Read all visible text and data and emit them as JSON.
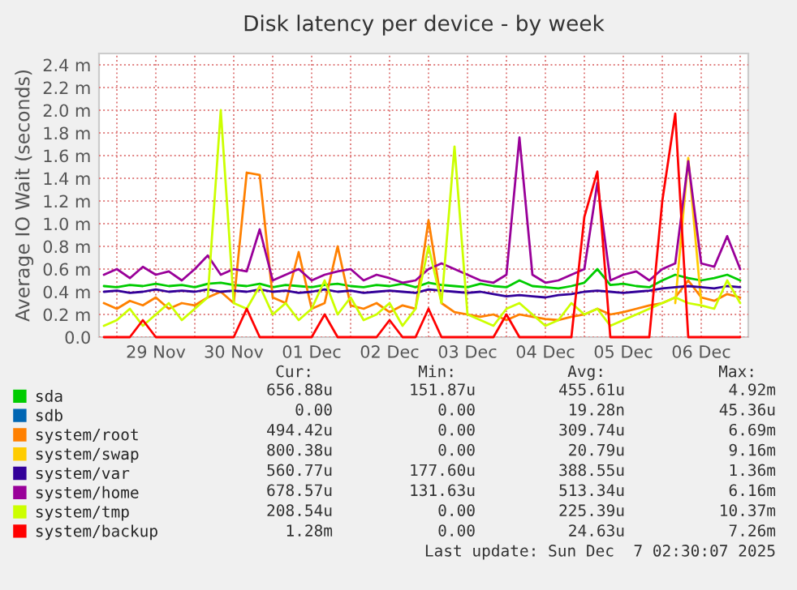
{
  "chart_data": {
    "type": "line",
    "title": "Disk latency per device - by week",
    "ylabel": "Average IO Wait (seconds)",
    "x": [
      "2025-11-28T20:00",
      "2025-11-29T00:00",
      "2025-11-29T04:00",
      "2025-11-29T08:00",
      "2025-11-29T12:00",
      "2025-11-29T16:00",
      "2025-11-29T20:00",
      "2025-11-30T00:00",
      "2025-11-30T04:00",
      "2025-11-30T08:00",
      "2025-11-30T12:00",
      "2025-11-30T16:00",
      "2025-11-30T20:00",
      "2025-12-01T00:00",
      "2025-12-01T04:00",
      "2025-12-01T08:00",
      "2025-12-01T12:00",
      "2025-12-01T16:00",
      "2025-12-01T20:00",
      "2025-12-02T00:00",
      "2025-12-02T04:00",
      "2025-12-02T08:00",
      "2025-12-02T12:00",
      "2025-12-02T16:00",
      "2025-12-02T20:00",
      "2025-12-03T00:00",
      "2025-12-03T04:00",
      "2025-12-03T08:00",
      "2025-12-03T12:00",
      "2025-12-03T16:00",
      "2025-12-03T20:00",
      "2025-12-04T00:00",
      "2025-12-04T04:00",
      "2025-12-04T08:00",
      "2025-12-04T12:00",
      "2025-12-04T16:00",
      "2025-12-04T20:00",
      "2025-12-05T00:00",
      "2025-12-05T04:00",
      "2025-12-05T08:00",
      "2025-12-05T12:00",
      "2025-12-05T16:00",
      "2025-12-05T20:00",
      "2025-12-06T00:00",
      "2025-12-06T04:00",
      "2025-12-06T08:00",
      "2025-12-06T12:00",
      "2025-12-06T16:00",
      "2025-12-06T20:00",
      "2025-12-07T00:00"
    ],
    "series": [
      {
        "name": "sda",
        "color": "#00cc00",
        "values": [
          0.45,
          0.44,
          0.46,
          0.45,
          0.47,
          0.45,
          0.46,
          0.44,
          0.47,
          0.48,
          0.46,
          0.45,
          0.47,
          0.44,
          0.46,
          0.45,
          0.44,
          0.46,
          0.47,
          0.45,
          0.44,
          0.46,
          0.45,
          0.47,
          0.44,
          0.48,
          0.46,
          0.45,
          0.44,
          0.47,
          0.45,
          0.44,
          0.5,
          0.45,
          0.44,
          0.43,
          0.45,
          0.48,
          0.6,
          0.46,
          0.47,
          0.45,
          0.44,
          0.5,
          0.55,
          0.52,
          0.5,
          0.52,
          0.55,
          0.5
        ]
      },
      {
        "name": "sdb",
        "color": "#0066b3",
        "values": [
          null,
          null,
          null,
          null,
          null,
          null,
          null,
          null,
          null,
          null,
          null,
          null,
          null,
          null,
          null,
          null,
          null,
          null,
          null,
          null,
          null,
          null,
          null,
          null,
          null,
          null,
          null,
          null,
          null,
          null,
          null,
          null,
          null,
          null,
          null,
          null,
          null,
          null,
          null,
          null,
          null,
          null,
          null,
          null,
          null,
          null,
          null,
          null,
          null,
          null
        ]
      },
      {
        "name": "system/root",
        "color": "#ff8000",
        "values": [
          0.3,
          0.25,
          0.32,
          0.28,
          0.35,
          0.25,
          0.3,
          0.28,
          0.35,
          0.4,
          0.3,
          1.45,
          1.43,
          0.35,
          0.3,
          0.75,
          0.25,
          0.3,
          0.8,
          0.28,
          0.25,
          0.3,
          0.22,
          0.28,
          0.25,
          1.03,
          0.3,
          0.22,
          0.2,
          0.18,
          0.2,
          0.15,
          0.2,
          0.18,
          0.16,
          0.15,
          0.18,
          0.2,
          0.25,
          0.2,
          0.22,
          0.25,
          0.28,
          0.3,
          0.35,
          0.5,
          0.35,
          0.32,
          0.38,
          0.35
        ]
      },
      {
        "name": "system/swap",
        "color": "#ffcc00",
        "values": [
          null,
          null,
          null,
          null,
          null,
          null,
          null,
          null,
          null,
          null,
          null,
          null,
          null,
          null,
          null,
          null,
          null,
          null,
          null,
          null,
          null,
          null,
          null,
          null,
          null,
          null,
          null,
          null,
          null,
          null,
          null,
          null,
          null,
          null,
          null,
          null,
          null,
          null,
          null,
          null,
          null,
          null,
          null,
          null,
          0.3,
          1.58,
          0.3,
          null,
          null,
          null
        ]
      },
      {
        "name": "system/var",
        "color": "#330099",
        "values": [
          0.4,
          0.41,
          0.39,
          0.4,
          0.42,
          0.4,
          0.41,
          0.4,
          0.42,
          0.4,
          0.41,
          0.4,
          0.42,
          0.4,
          0.41,
          0.39,
          0.4,
          0.42,
          0.4,
          0.41,
          0.39,
          0.4,
          0.41,
          0.4,
          0.39,
          0.42,
          0.41,
          0.4,
          0.39,
          0.4,
          0.38,
          0.36,
          0.37,
          0.36,
          0.35,
          0.37,
          0.38,
          0.4,
          0.41,
          0.4,
          0.39,
          0.4,
          0.41,
          0.43,
          0.44,
          0.45,
          0.44,
          0.43,
          0.45,
          0.44
        ]
      },
      {
        "name": "system/home",
        "color": "#990099",
        "values": [
          0.55,
          0.6,
          0.52,
          0.62,
          0.55,
          0.58,
          0.5,
          0.6,
          0.72,
          0.55,
          0.6,
          0.58,
          0.95,
          0.5,
          0.55,
          0.6,
          0.5,
          0.55,
          0.58,
          0.6,
          0.5,
          0.55,
          0.52,
          0.48,
          0.5,
          0.6,
          0.65,
          0.6,
          0.55,
          0.5,
          0.48,
          0.55,
          1.76,
          0.55,
          0.48,
          0.5,
          0.55,
          0.6,
          1.36,
          0.5,
          0.55,
          0.58,
          0.5,
          0.6,
          0.65,
          1.55,
          0.65,
          0.62,
          0.89,
          0.6
        ]
      },
      {
        "name": "system/tmp",
        "color": "#ccff00",
        "values": [
          0.1,
          0.15,
          0.25,
          0.1,
          0.2,
          0.3,
          0.15,
          0.25,
          0.35,
          2.0,
          0.3,
          0.25,
          0.45,
          0.2,
          0.3,
          0.15,
          0.25,
          0.5,
          0.2,
          0.35,
          0.15,
          0.2,
          0.3,
          0.1,
          0.25,
          0.8,
          0.3,
          1.68,
          0.2,
          0.15,
          0.1,
          0.25,
          0.3,
          0.2,
          0.1,
          0.15,
          0.3,
          0.2,
          0.25,
          0.1,
          0.15,
          0.2,
          0.25,
          0.3,
          0.35,
          0.3,
          0.28,
          0.25,
          0.5,
          0.3
        ]
      },
      {
        "name": "system/backup",
        "color": "#ff0000",
        "values": [
          0,
          0,
          0,
          0.15,
          0,
          0,
          0,
          0,
          0,
          0,
          0,
          0.25,
          0,
          0,
          0,
          0,
          0,
          0.2,
          0,
          0,
          0,
          0,
          0.15,
          0,
          0,
          0.25,
          0,
          0,
          0,
          0,
          0,
          0.2,
          0,
          0,
          0,
          0,
          0,
          1.06,
          1.46,
          0,
          0,
          0,
          0,
          1.2,
          1.97,
          0,
          0,
          0,
          0,
          0
        ]
      }
    ],
    "xlim": [
      "2025-11-28T18:30",
      "2025-12-07T02:30"
    ],
    "xticks": [
      {
        "value": "2025-11-29T00:00",
        "label": null
      },
      {
        "value": "2025-11-29T12:00",
        "label": "29 Nov"
      },
      {
        "value": "2025-11-30T00:00",
        "label": null
      },
      {
        "value": "2025-11-30T12:00",
        "label": "30 Nov"
      },
      {
        "value": "2025-12-01T00:00",
        "label": null
      },
      {
        "value": "2025-12-01T12:00",
        "label": "01 Dec"
      },
      {
        "value": "2025-12-02T00:00",
        "label": null
      },
      {
        "value": "2025-12-02T12:00",
        "label": "02 Dec"
      },
      {
        "value": "2025-12-03T00:00",
        "label": null
      },
      {
        "value": "2025-12-03T12:00",
        "label": "03 Dec"
      },
      {
        "value": "2025-12-04T00:00",
        "label": null
      },
      {
        "value": "2025-12-04T12:00",
        "label": "04 Dec"
      },
      {
        "value": "2025-12-05T00:00",
        "label": null
      },
      {
        "value": "2025-12-05T12:00",
        "label": "05 Dec"
      },
      {
        "value": "2025-12-06T00:00",
        "label": null
      },
      {
        "value": "2025-12-06T12:00",
        "label": "06 Dec"
      },
      {
        "value": "2025-12-07T00:00",
        "label": null
      }
    ],
    "ylim": [
      0,
      2.5
    ],
    "yticks": [
      {
        "value": 0,
        "label": "0.0"
      },
      {
        "value": 0.2,
        "label": "0.2 m"
      },
      {
        "value": 0.4,
        "label": "0.4 m"
      },
      {
        "value": 0.6,
        "label": "0.6 m"
      },
      {
        "value": 0.8,
        "label": "0.8 m"
      },
      {
        "value": 1.0,
        "label": "1.0 m"
      },
      {
        "value": 1.2,
        "label": "1.2 m"
      },
      {
        "value": 1.4,
        "label": "1.4 m"
      },
      {
        "value": 1.6,
        "label": "1.6 m"
      },
      {
        "value": 1.8,
        "label": "1.8 m"
      },
      {
        "value": 2.0,
        "label": "2.0 m"
      },
      {
        "value": 2.2,
        "label": "2.2 m"
      },
      {
        "value": 2.4,
        "label": "2.4 m"
      }
    ],
    "grid": true,
    "legend": "bottom left",
    "annotations": [
      "Cur:",
      "Min:",
      "Avg:",
      "Max:",
      "656.88u",
      "151.87u",
      "455.61u",
      "4.92m",
      "0.00",
      "0.00",
      "19.28n",
      "45.36u",
      "494.42u",
      "0.00",
      "309.74u",
      "6.69m",
      "800.38u",
      "0.00",
      "20.79u",
      "9.16m",
      "560.77u",
      "177.60u",
      "388.55u",
      "1.36m",
      "678.57u",
      "131.63u",
      "513.34u",
      "6.16m",
      "208.54u",
      "0.00",
      "225.39u",
      "10.37m",
      "1.28m",
      "0.00",
      "24.63u",
      "7.26m",
      "Last update: Sun Dec  7 02:30:07 2025"
    ]
  }
}
